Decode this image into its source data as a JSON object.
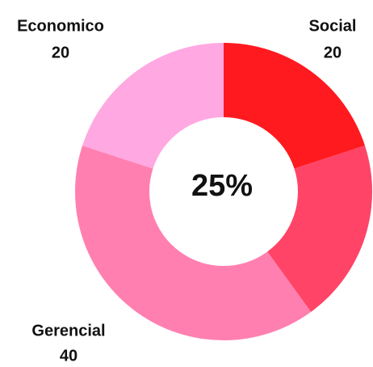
{
  "chart_data": {
    "type": "donut",
    "categories": [
      "Social",
      null,
      "Gerencial",
      "Economico"
    ],
    "values": [
      20,
      20,
      40,
      20
    ],
    "colors": [
      "#ff1a1f",
      "#ff4468",
      "#ff80b0",
      "#ffa8e2"
    ],
    "center_label": "25%"
  }
}
